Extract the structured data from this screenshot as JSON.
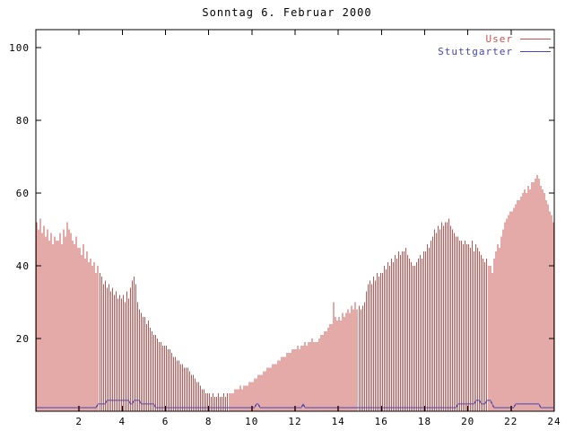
{
  "legend": [
    {
      "label": "User",
      "color": "#c85452"
    },
    {
      "label": "Stuttgarter",
      "color": "#4646b4"
    }
  ],
  "chart_data": {
    "type": "bar",
    "title": "Sonntag 6. Februar 2000",
    "xlabel": "",
    "ylabel": "",
    "xlim": [
      0,
      24
    ],
    "ylim": [
      0,
      105
    ],
    "xticks": [
      2,
      4,
      6,
      8,
      10,
      12,
      14,
      16,
      18,
      20,
      22,
      24
    ],
    "yticks": [
      20,
      40,
      60,
      80,
      100
    ],
    "x_unit": "hour of day",
    "x_start": 0,
    "x_step_minutes": 5,
    "legend_position": "top-right",
    "grid": false,
    "series": [
      {
        "name": "User",
        "style": "impulses",
        "color": "#c85452",
        "values": [
          52,
          50,
          53,
          49,
          51,
          48,
          50,
          47,
          49,
          46,
          48,
          47,
          47,
          49,
          46,
          50,
          48,
          52,
          50,
          49,
          47,
          46,
          48,
          45,
          45,
          43,
          46,
          42,
          44,
          41,
          42,
          40,
          41,
          38,
          40,
          38,
          37,
          35,
          36,
          34,
          35,
          33,
          34,
          32,
          33,
          31,
          32,
          31,
          32,
          30,
          33,
          31,
          34,
          36,
          37,
          35,
          30,
          28,
          27,
          26,
          26,
          24,
          25,
          23,
          22,
          21,
          21,
          20,
          19,
          19,
          18,
          18,
          18,
          17,
          17,
          16,
          15,
          15,
          14,
          14,
          13,
          13,
          12,
          12,
          12,
          11,
          10,
          10,
          9,
          8,
          8,
          7,
          6,
          6,
          5,
          5,
          5,
          4,
          5,
          4,
          4,
          5,
          4,
          4,
          5,
          4,
          5,
          5,
          5,
          5,
          6,
          6,
          6,
          7,
          6,
          7,
          7,
          7,
          8,
          8,
          8,
          9,
          9,
          10,
          10,
          10,
          11,
          11,
          12,
          12,
          12,
          13,
          13,
          13,
          14,
          14,
          15,
          15,
          15,
          16,
          16,
          16,
          17,
          17,
          17,
          18,
          17,
          18,
          18,
          19,
          18,
          19,
          19,
          20,
          19,
          19,
          19,
          20,
          21,
          21,
          22,
          22,
          23,
          24,
          24,
          30,
          26,
          25,
          26,
          25,
          27,
          26,
          27,
          28,
          27,
          29,
          28,
          30,
          28,
          29,
          28,
          29,
          30,
          33,
          35,
          36,
          35,
          37,
          36,
          38,
          37,
          38,
          38,
          40,
          39,
          41,
          40,
          42,
          41,
          43,
          42,
          44,
          43,
          44,
          44,
          45,
          43,
          42,
          41,
          40,
          40,
          41,
          42,
          43,
          42,
          44,
          44,
          46,
          45,
          47,
          48,
          50,
          49,
          51,
          50,
          52,
          51,
          52,
          52,
          53,
          51,
          50,
          49,
          48,
          48,
          47,
          47,
          46,
          47,
          46,
          46,
          45,
          47,
          44,
          46,
          45,
          44,
          43,
          42,
          41,
          42,
          40,
          40,
          38,
          42,
          44,
          46,
          45,
          48,
          50,
          52,
          53,
          54,
          55,
          55,
          56,
          57,
          58,
          58,
          59,
          60,
          61,
          60,
          62,
          61,
          63,
          63,
          64,
          65,
          64,
          62,
          61,
          60,
          58,
          57,
          55,
          54,
          52
        ]
      },
      {
        "name": "Stuttgarter",
        "style": "line",
        "color": "#4646b4",
        "values": [
          1,
          1,
          1,
          1,
          1,
          1,
          1,
          1,
          1,
          1,
          1,
          1,
          1,
          1,
          1,
          1,
          1,
          1,
          1,
          1,
          1,
          1,
          1,
          1,
          1,
          1,
          1,
          1,
          1,
          1,
          1,
          1,
          1,
          1,
          2,
          2,
          2,
          2,
          2,
          3,
          3,
          3,
          3,
          3,
          3,
          3,
          3,
          3,
          3,
          3,
          3,
          3,
          2,
          2,
          3,
          3,
          3,
          3,
          2,
          2,
          2,
          2,
          2,
          2,
          2,
          2,
          1,
          1,
          1,
          1,
          1,
          1,
          1,
          1,
          1,
          1,
          1,
          1,
          1,
          1,
          1,
          1,
          1,
          1,
          1,
          1,
          1,
          1,
          1,
          1,
          1,
          1,
          1,
          1,
          1,
          1,
          1,
          1,
          1,
          1,
          1,
          1,
          1,
          1,
          1,
          1,
          1,
          1,
          1,
          1,
          1,
          1,
          1,
          1,
          1,
          1,
          1,
          1,
          1,
          1,
          1,
          1,
          2,
          2,
          1,
          1,
          1,
          1,
          1,
          1,
          1,
          1,
          1,
          1,
          1,
          1,
          1,
          1,
          1,
          1,
          1,
          1,
          1,
          1,
          1,
          1,
          1,
          1,
          2,
          1,
          1,
          1,
          1,
          1,
          1,
          1,
          1,
          1,
          1,
          1,
          1,
          1,
          1,
          1,
          1,
          1,
          1,
          1,
          1,
          1,
          1,
          1,
          1,
          1,
          1,
          1,
          1,
          1,
          1,
          1,
          1,
          1,
          1,
          1,
          1,
          1,
          1,
          1,
          1,
          1,
          1,
          1,
          1,
          1,
          1,
          1,
          1,
          1,
          1,
          1,
          1,
          1,
          1,
          1,
          1,
          1,
          1,
          1,
          1,
          1,
          1,
          1,
          1,
          1,
          1,
          1,
          1,
          1,
          1,
          1,
          1,
          1,
          1,
          1,
          1,
          1,
          1,
          1,
          1,
          1,
          1,
          1,
          1,
          1,
          2,
          2,
          2,
          2,
          2,
          2,
          2,
          2,
          2,
          2,
          3,
          3,
          3,
          2,
          2,
          2,
          3,
          3,
          3,
          2,
          1,
          1,
          1,
          1,
          1,
          1,
          1,
          1,
          1,
          1,
          1,
          1,
          2,
          2,
          2,
          2,
          2,
          2,
          2,
          2,
          2,
          2,
          2,
          2,
          2,
          2,
          1,
          1,
          1,
          1,
          1,
          1,
          1,
          1
        ]
      }
    ]
  }
}
